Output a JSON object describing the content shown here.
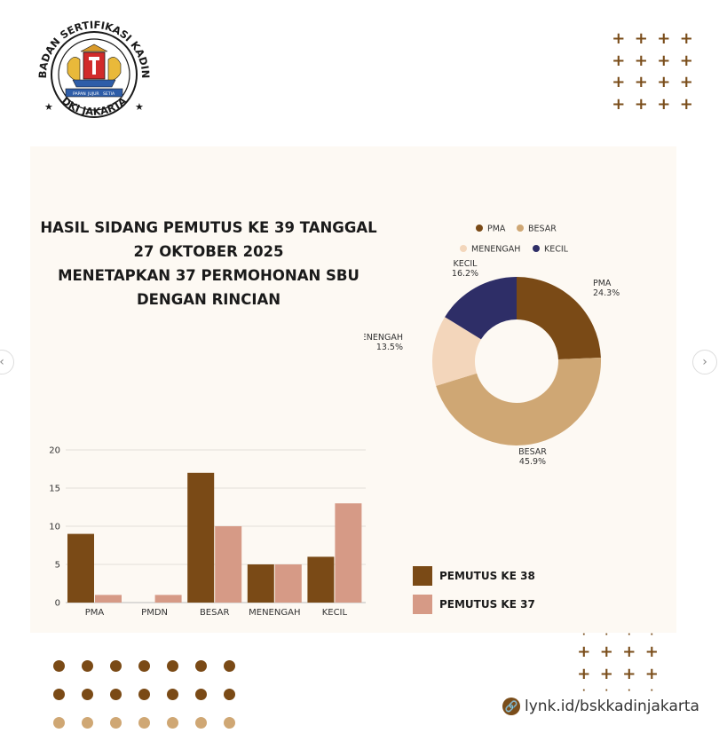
{
  "logo": {
    "ring_text_top": "BADAN SERTIFIKASI KADIN",
    "ring_text_bottom": "DKI JAKARTA",
    "motto": [
      "PAPAN",
      "JUJUR",
      "SETIA"
    ]
  },
  "title_lines": [
    "HASIL SIDANG PEMUTUS KE 39 TANGGAL",
    "27 OKTOBER 2025",
    "MENETAPKAN 37 PERMOHONAN SBU",
    "DENGAN RINCIAN"
  ],
  "link_text": "lynk.id/bskkadinjakarta",
  "colors": {
    "dark_brown": "#7a4a16",
    "tan": "#cfa774",
    "peach": "#f3d6bb",
    "navy": "#2e2e67",
    "pink": "#d69a86",
    "panel": "#fdf9f3"
  },
  "chart_data": [
    {
      "type": "pie",
      "legend_position": "top",
      "categories": [
        "PMA",
        "BESAR",
        "MENENGAH",
        "KECIL"
      ],
      "values": [
        24.3,
        45.9,
        13.5,
        16.2
      ],
      "value_labels": [
        "24.3%",
        "45.9%",
        "13.5%",
        "16.2%"
      ],
      "colors": [
        "#7a4a16",
        "#cfa774",
        "#f3d6bb",
        "#2e2e67"
      ]
    },
    {
      "type": "bar",
      "categories": [
        "PMA",
        "PMDN",
        "BESAR",
        "MENENGAH",
        "KECIL"
      ],
      "ylim": [
        0,
        20
      ],
      "yticks": [
        0,
        5,
        10,
        15,
        20
      ],
      "grid": true,
      "legend_position": "right",
      "series": [
        {
          "name": "PEMUTUS KE 38",
          "values": [
            9,
            0,
            17,
            5,
            6
          ],
          "color": "#7a4a16"
        },
        {
          "name": "PEMUTUS KE 37",
          "values": [
            1,
            1,
            10,
            5,
            13
          ],
          "color": "#d69a86"
        }
      ]
    }
  ]
}
